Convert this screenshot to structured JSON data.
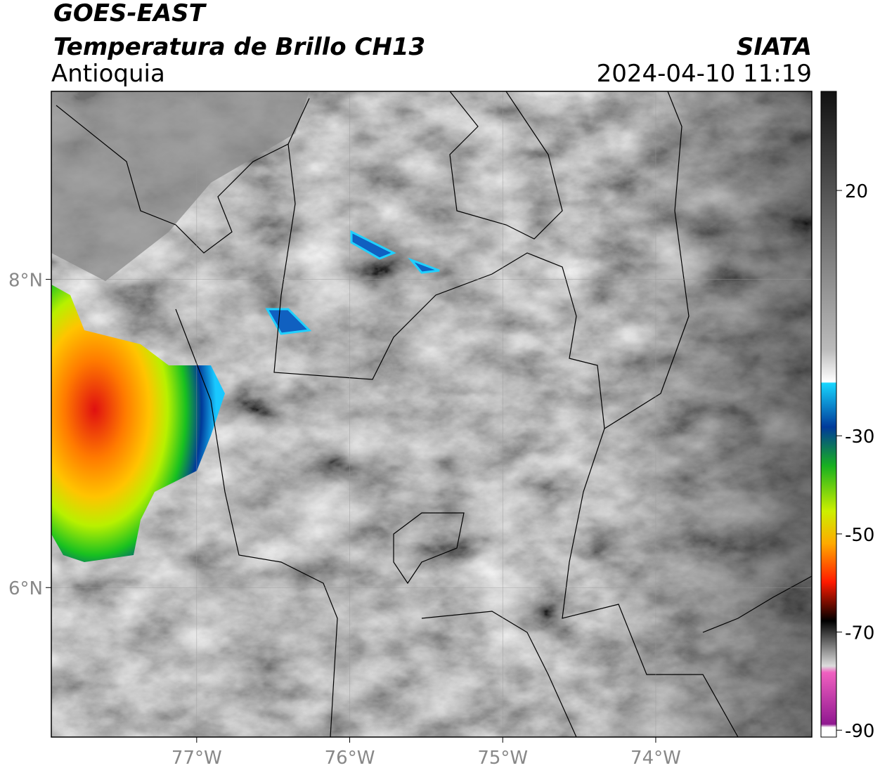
{
  "header": {
    "title": "GOES-EAST",
    "subtitle": "Temperatura de Brillo CH13",
    "region": "Antioquia",
    "source": "SIATA",
    "datetime": "2024-04-10 11:19"
  },
  "map": {
    "xlim": [
      -77.95,
      -72.98
    ],
    "ylim": [
      5.03,
      9.22
    ],
    "xticks": [
      {
        "value": -77,
        "label": "77°W"
      },
      {
        "value": -76,
        "label": "76°W"
      },
      {
        "value": -75,
        "label": "75°W"
      },
      {
        "value": -74,
        "label": "74°W"
      }
    ],
    "yticks": [
      {
        "value": 8,
        "label": "8°N"
      },
      {
        "value": 6,
        "label": "6°N"
      }
    ]
  },
  "colorbar": {
    "clim": [
      -91.4,
      40.2
    ],
    "ticks": [
      20,
      -30,
      -50,
      -70,
      -90
    ]
  }
}
